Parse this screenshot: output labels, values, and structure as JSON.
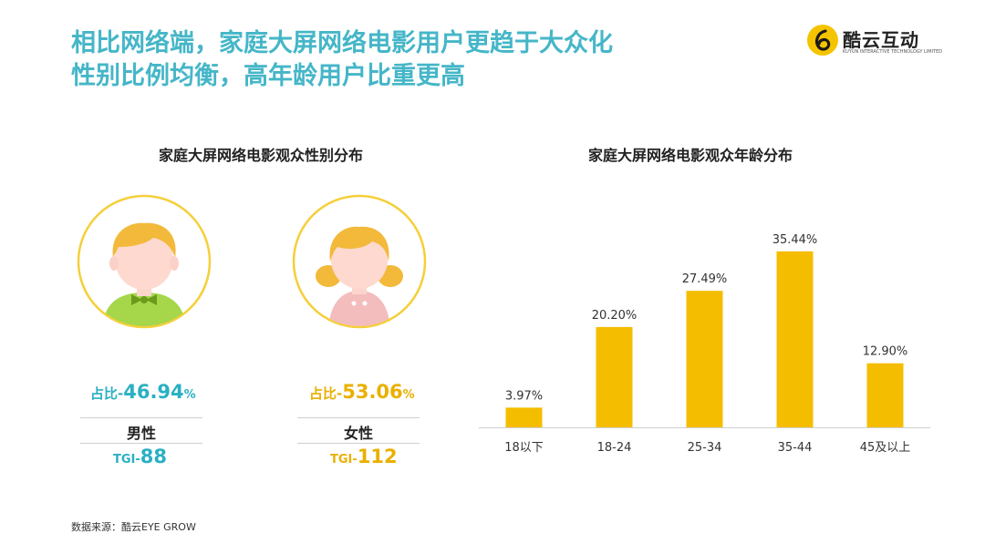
{
  "headline": {
    "line1": "相比网络端，家庭大屏网络电影用户更趋于大众化",
    "line2": "性别比例均衡，高年龄用户比重更高"
  },
  "brand": {
    "name": "酷云互动",
    "subtitle": "KUYUN INTERACTIVE TECHNOLOGY LIMITED"
  },
  "gender_section": {
    "title": "家庭大屏网络电影观众性别分布",
    "share_prefix": "占比-",
    "tgi_prefix": "TGI-",
    "male": {
      "label": "男性",
      "share": "46.94",
      "percent_sign": "%",
      "tgi": "88"
    },
    "female": {
      "label": "女性",
      "share": "53.06",
      "percent_sign": "%",
      "tgi": "112"
    }
  },
  "age_section": {
    "title": "家庭大屏网络电影观众年龄分布"
  },
  "source": "数据来源：酷云EYE GROW",
  "colors": {
    "headline": "#45b6c8",
    "male_accent": "#2ab0c3",
    "female_accent": "#eab000",
    "bar": "#f5bd00"
  },
  "chart_data": {
    "type": "bar",
    "categories": [
      "18以下",
      "18-24",
      "25-34",
      "35-44",
      "45及以上"
    ],
    "values": [
      3.97,
      20.2,
      27.49,
      35.44,
      12.9
    ],
    "data_labels": [
      "3.97%",
      "20.20%",
      "27.49%",
      "35.44%",
      "12.90%"
    ],
    "title": "家庭大屏网络电影观众年龄分布",
    "xlabel": "",
    "ylabel": "",
    "ylim": [
      0,
      40
    ],
    "grid": false,
    "legend": "none"
  }
}
